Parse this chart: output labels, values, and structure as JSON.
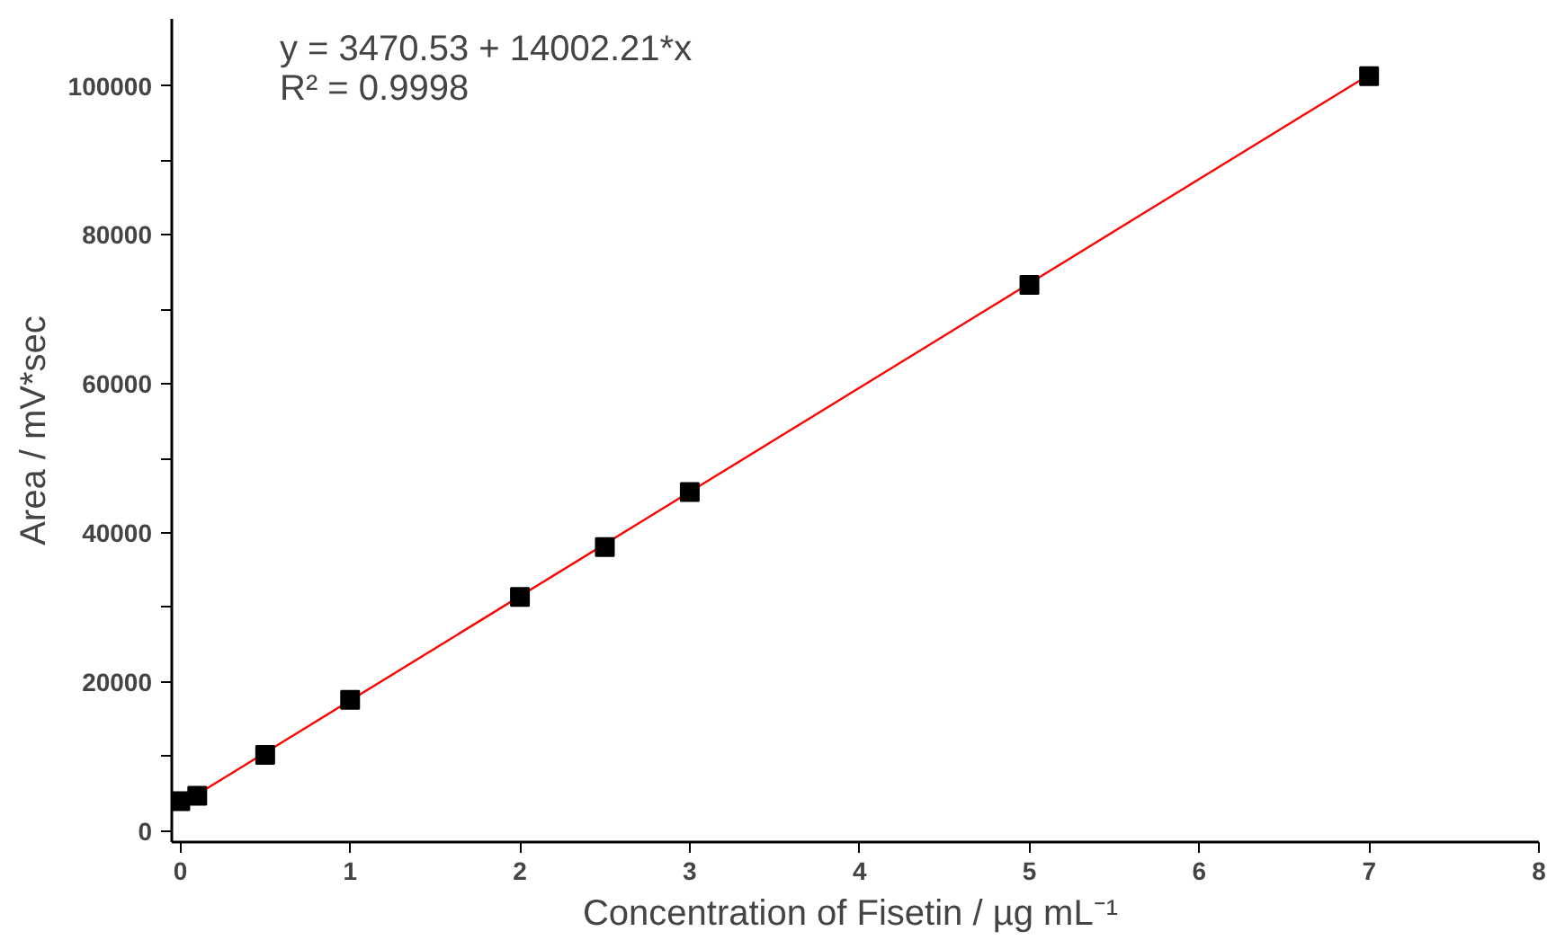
{
  "chart_data": {
    "type": "scatter",
    "xlabel": "Concentration of Fisetin  / µg mL⁻¹",
    "ylabel": "Area / mV*sec",
    "series": [
      {
        "color": "#000000",
        "marker": "square",
        "x": [
          0,
          0.1,
          0.5,
          1,
          2,
          2.5,
          3,
          5,
          7
        ],
        "values": [
          4000,
          4700,
          10200,
          17600,
          31400,
          38100,
          45500,
          73300,
          101300
        ]
      },
      {
        "type": "line",
        "color": "#ff0000",
        "marker": "none",
        "x": [
          0,
          7
        ],
        "values": [
          3500,
          101500
        ]
      }
    ],
    "xlim": [
      -0.05,
      8
    ],
    "ylim": [
      -1500,
      109000
    ],
    "xticks": [
      0,
      1,
      2,
      3,
      4,
      5,
      6,
      7,
      8
    ],
    "yticks": [
      0,
      {
        "value": 10000,
        "label": null
      },
      20000,
      {
        "value": 30000,
        "label": null
      },
      40000,
      {
        "value": 50000,
        "label": null
      },
      60000,
      {
        "value": 70000,
        "label": null
      },
      80000,
      {
        "value": 90000,
        "label": null
      },
      100000
    ],
    "annotations": [
      "y = 3470.53 + 14002.21*x",
      "R² = 0.9998"
    ],
    "grid": false
  }
}
